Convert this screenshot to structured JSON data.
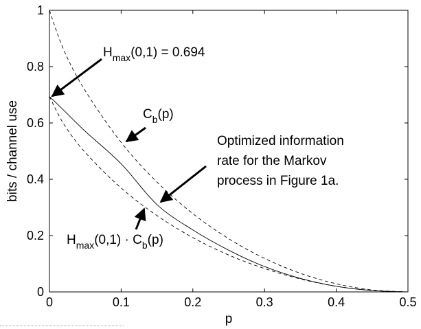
{
  "chart_data": {
    "type": "line",
    "xlabel": "p",
    "ylabel": "bits / channel use",
    "xlim": [
      0,
      0.5
    ],
    "ylim": [
      0,
      1
    ],
    "xticks": [
      0,
      0.1,
      0.2,
      0.3,
      0.4,
      0.5
    ],
    "yticks": [
      0,
      0.2,
      0.4,
      0.6,
      0.8,
      1
    ],
    "xtick_labels": [
      "0",
      "0.1",
      "0.2",
      "0.3",
      "0.4",
      "0.5"
    ],
    "ytick_labels": [
      "0",
      "0.2",
      "0.4",
      "0.6",
      "0.8",
      "1"
    ],
    "grid": false,
    "series": [
      {
        "style": "dashed",
        "x": [
          0,
          0.02,
          0.05,
          0.1,
          0.15,
          0.2,
          0.25,
          0.3,
          0.35,
          0.4,
          0.45,
          0.5
        ],
        "values": [
          1.0,
          0.859,
          0.714,
          0.531,
          0.39,
          0.278,
          0.189,
          0.119,
          0.066,
          0.029,
          0.007,
          0.0
        ]
      },
      {
        "style": "solid",
        "x": [
          0,
          0.02,
          0.05,
          0.1,
          0.15,
          0.2,
          0.25,
          0.3,
          0.35,
          0.4,
          0.45,
          0.5
        ],
        "values": [
          0.694,
          0.645,
          0.57,
          0.455,
          0.31,
          0.22,
          0.148,
          0.09,
          0.048,
          0.02,
          0.005,
          0.0
        ]
      },
      {
        "style": "dashed",
        "x": [
          0,
          0.02,
          0.05,
          0.1,
          0.15,
          0.2,
          0.25,
          0.3,
          0.35,
          0.4,
          0.45,
          0.5
        ],
        "values": [
          0.694,
          0.596,
          0.495,
          0.369,
          0.271,
          0.193,
          0.131,
          0.083,
          0.046,
          0.02,
          0.005,
          0.0
        ]
      }
    ],
    "annotations": [
      {
        "id": "hmax",
        "text": "H",
        "sub": "max",
        "rest": "(0,1) = 0.694",
        "target": [
          0,
          0.694
        ]
      },
      {
        "id": "cb",
        "text": "C",
        "sub": "b",
        "rest": "(p)"
      },
      {
        "id": "markov",
        "lines": [
          "Optimized information",
          "rate for the Markov",
          "process in Figure 1a."
        ],
        "target": [
          0.15,
          0.31
        ]
      },
      {
        "id": "prod",
        "text": "H",
        "sub": "max",
        "rest1": "(0,1) · C",
        "sub2": "b",
        "rest2": "(p)"
      }
    ]
  }
}
